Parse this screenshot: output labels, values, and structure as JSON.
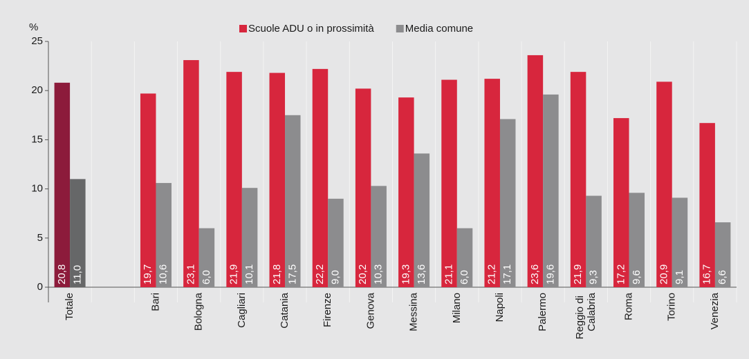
{
  "chart_data": {
    "type": "bar",
    "y_unit": "%",
    "categories": [
      "Totale",
      null,
      "Bari",
      "Bologna",
      "Cagliari",
      "Catania",
      "Firenze",
      "Genova",
      "Messina",
      "Milano",
      "Napoli",
      "Palermo",
      "Reggio di Calabria",
      "Roma",
      "Torino",
      "Venezia"
    ],
    "series": [
      {
        "name": "Scuole ADU o in prossimità",
        "color": "#d7263d",
        "point_colors": [
          "#8c1b3b",
          null,
          null,
          null,
          null,
          null,
          null,
          null,
          null,
          null,
          null,
          null,
          null,
          null,
          null,
          null
        ],
        "values": [
          20.8,
          null,
          19.7,
          23.1,
          21.9,
          21.8,
          22.2,
          20.2,
          19.3,
          21.1,
          21.2,
          23.6,
          21.9,
          17.2,
          20.9,
          16.7
        ],
        "value_labels": [
          "20,8",
          null,
          "19,7",
          "23,1",
          "21,9",
          "21,8",
          "22,2",
          "20,2",
          "19,3",
          "21,1",
          "21,2",
          "23,6",
          "21,9",
          "17,2",
          "20,9",
          "16,7"
        ]
      },
      {
        "name": "Media comune",
        "color": "#8c8c8e",
        "point_colors": [
          "#666768",
          null,
          null,
          null,
          null,
          null,
          null,
          null,
          null,
          null,
          null,
          null,
          null,
          null,
          null,
          null
        ],
        "values": [
          11.0,
          null,
          10.6,
          6.0,
          10.1,
          17.5,
          9.0,
          10.3,
          13.6,
          6.0,
          17.1,
          19.6,
          9.3,
          9.6,
          9.1,
          6.6
        ],
        "value_labels": [
          "11,0",
          null,
          "10,6",
          "6,0",
          "10,1",
          "17,5",
          "9,0",
          "10,3",
          "13,6",
          "6,0",
          "17,1",
          "19,6",
          "9,3",
          "9,6",
          "9,1",
          "6,6"
        ]
      }
    ],
    "ylim": [
      0,
      25
    ],
    "yticks": [
      0,
      5,
      10,
      15,
      20,
      25
    ],
    "grid": false,
    "legend": "top"
  }
}
